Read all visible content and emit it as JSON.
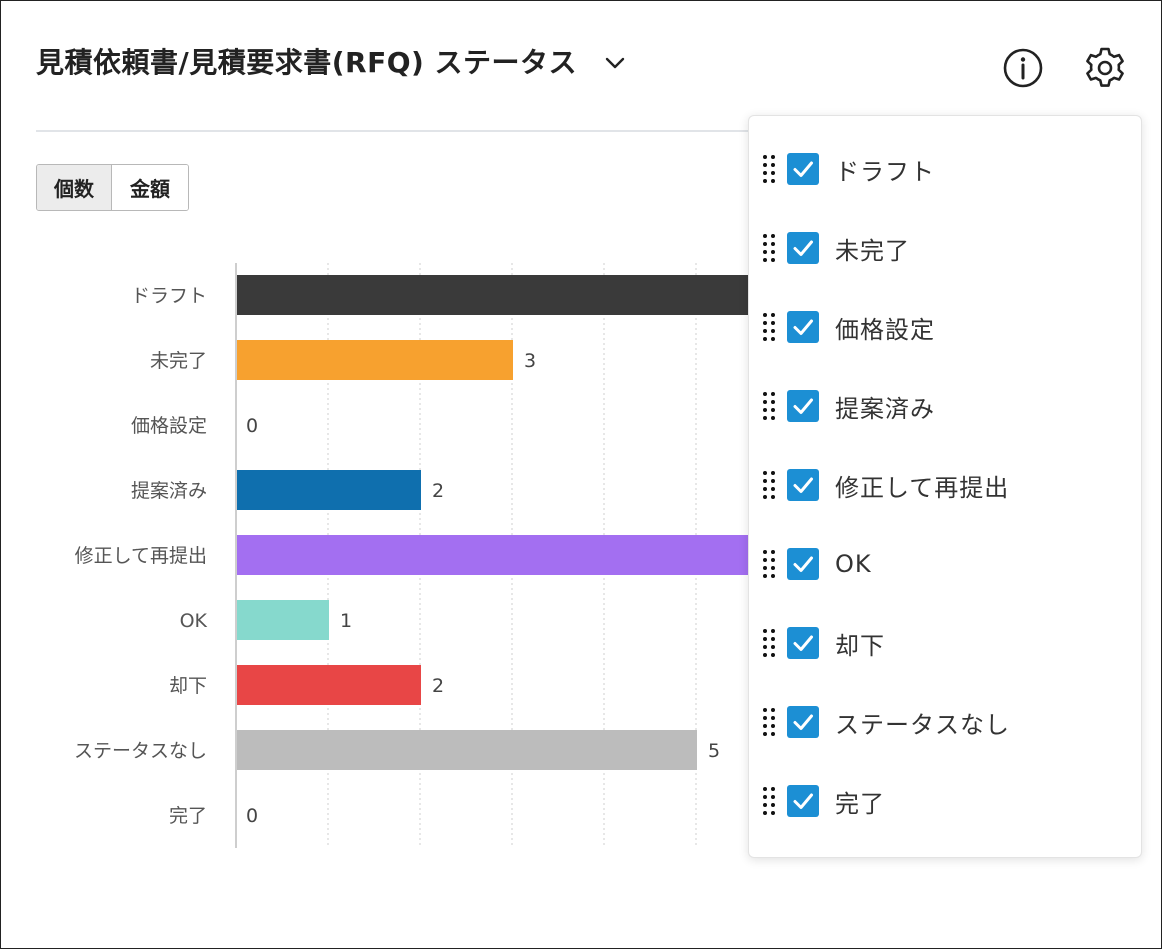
{
  "header": {
    "title": "見積依頼書/見積要求書(RFQ) ステータス",
    "chevron_icon": "chevron-down-icon",
    "info_icon": "info-icon",
    "settings_icon": "gear-icon"
  },
  "toggle": {
    "count_label": "個数",
    "amount_label": "金額",
    "active": "count"
  },
  "chart_data": {
    "type": "bar",
    "orientation": "horizontal",
    "categories": [
      "ドラフト",
      "未完了",
      "価格設定",
      "提案済み",
      "修正して再提出",
      "OK",
      "却下",
      "ステータスなし",
      "完了"
    ],
    "values": [
      null,
      3,
      0,
      2,
      null,
      1,
      2,
      5,
      0
    ],
    "value_labels": [
      "",
      "3",
      "0",
      "2",
      "",
      "1",
      "2",
      "5",
      "0"
    ],
    "colors": [
      "#3a3a3a",
      "#f7a12f",
      "#cccccc",
      "#0f6fae",
      "#a36ff1",
      "#86d9cd",
      "#e84646",
      "#bcbcbc",
      "#cccccc"
    ],
    "note_visible_range_x": [
      0,
      5.5
    ],
    "grid": true,
    "grid_style": "dotted vertical"
  },
  "menu": {
    "items": [
      {
        "label": "ドラフト",
        "checked": true
      },
      {
        "label": "未完了",
        "checked": true
      },
      {
        "label": "価格設定",
        "checked": true
      },
      {
        "label": "提案済み",
        "checked": true
      },
      {
        "label": "修正して再提出",
        "checked": true
      },
      {
        "label": "OK",
        "checked": true
      },
      {
        "label": "却下",
        "checked": true
      },
      {
        "label": "ステータスなし",
        "checked": true
      },
      {
        "label": "完了",
        "checked": true
      }
    ]
  }
}
